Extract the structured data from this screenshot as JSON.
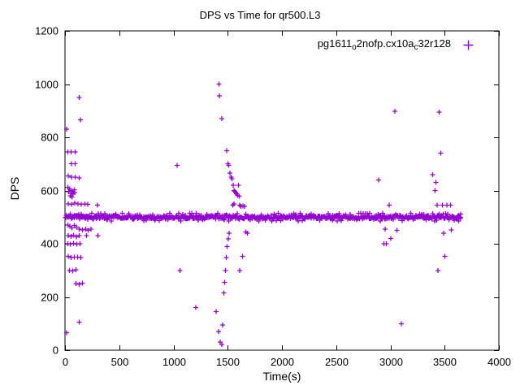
{
  "legend": {
    "p1": "pg1611",
    "s1": "o",
    "p2": "2nofp.cx10a",
    "s2": "c",
    "p3": "32r128"
  },
  "chart_data": {
    "type": "scatter",
    "title": "DPS vs Time for qr500.L3",
    "xlabel": "Time(s)",
    "ylabel": "DPS",
    "xlim": [
      0,
      4000
    ],
    "ylim": [
      0,
      1200
    ],
    "xticks": [
      0,
      500,
      1000,
      1500,
      2000,
      2500,
      3000,
      3500,
      4000
    ],
    "yticks": [
      0,
      200,
      400,
      600,
      800,
      1000,
      1200
    ],
    "grid": false,
    "legend_label": "pg1611_o2nofp.cx10a_c32r128",
    "legend_position": "top-right",
    "marker": "plus",
    "color": "#9400d3",
    "band": {
      "y": 500,
      "x_start": 5,
      "x_end": 3650,
      "x_step": 8,
      "y_jitter": 7,
      "fuzz_step": 20,
      "fuzz_jitter": 15
    },
    "points": [
      [
        15,
        830
      ],
      [
        15,
        65
      ],
      [
        25,
        745
      ],
      [
        55,
        745
      ],
      [
        95,
        745
      ],
      [
        130,
        950
      ],
      [
        142,
        865
      ],
      [
        60,
        700
      ],
      [
        95,
        700
      ],
      [
        30,
        655
      ],
      [
        60,
        650
      ],
      [
        95,
        650
      ],
      [
        130,
        648
      ],
      [
        25,
        612
      ],
      [
        40,
        606
      ],
      [
        55,
        600
      ],
      [
        70,
        597
      ],
      [
        85,
        603
      ],
      [
        35,
        595
      ],
      [
        60,
        590
      ],
      [
        75,
        588
      ],
      [
        90,
        592
      ],
      [
        50,
        580
      ],
      [
        65,
        575
      ],
      [
        30,
        550
      ],
      [
        60,
        548
      ],
      [
        90,
        552
      ],
      [
        120,
        550
      ],
      [
        150,
        548
      ],
      [
        185,
        550
      ],
      [
        210,
        548
      ],
      [
        300,
        545
      ],
      [
        25,
        470
      ],
      [
        45,
        465
      ],
      [
        65,
        460
      ],
      [
        85,
        468
      ],
      [
        105,
        462
      ],
      [
        130,
        455
      ],
      [
        160,
        452
      ],
      [
        190,
        455
      ],
      [
        215,
        450
      ],
      [
        240,
        455
      ],
      [
        30,
        430
      ],
      [
        55,
        428
      ],
      [
        80,
        432
      ],
      [
        105,
        426
      ],
      [
        130,
        430
      ],
      [
        200,
        430
      ],
      [
        305,
        430
      ],
      [
        25,
        400
      ],
      [
        50,
        398
      ],
      [
        80,
        402
      ],
      [
        110,
        398
      ],
      [
        140,
        400
      ],
      [
        30,
        352
      ],
      [
        55,
        348
      ],
      [
        85,
        350
      ],
      [
        115,
        350
      ],
      [
        145,
        348
      ],
      [
        40,
        300
      ],
      [
        70,
        298
      ],
      [
        100,
        302
      ],
      [
        100,
        250
      ],
      [
        130,
        248
      ],
      [
        160,
        252
      ],
      [
        130,
        105
      ],
      [
        1035,
        695
      ],
      [
        1060,
        300
      ],
      [
        1205,
        160
      ],
      [
        1420,
        1000
      ],
      [
        1425,
        955
      ],
      [
        1445,
        870
      ],
      [
        1395,
        145
      ],
      [
        1415,
        70
      ],
      [
        1430,
        30
      ],
      [
        1445,
        22
      ],
      [
        1455,
        95
      ],
      [
        1465,
        215
      ],
      [
        1472,
        255
      ],
      [
        1480,
        300
      ],
      [
        1488,
        348
      ],
      [
        1496,
        390
      ],
      [
        1504,
        418
      ],
      [
        1512,
        440
      ],
      [
        1490,
        750
      ],
      [
        1500,
        700
      ],
      [
        1510,
        695
      ],
      [
        1520,
        665
      ],
      [
        1530,
        650
      ],
      [
        1540,
        645
      ],
      [
        1550,
        620
      ],
      [
        1600,
        620
      ],
      [
        1558,
        600
      ],
      [
        1565,
        597
      ],
      [
        1572,
        592
      ],
      [
        1580,
        588
      ],
      [
        1590,
        582
      ],
      [
        1605,
        578
      ],
      [
        1545,
        545
      ],
      [
        1558,
        550
      ],
      [
        1612,
        545
      ],
      [
        1622,
        540
      ],
      [
        1640,
        542
      ],
      [
        1655,
        540
      ],
      [
        1665,
        445
      ],
      [
        1680,
        440
      ],
      [
        1635,
        352
      ],
      [
        1610,
        300
      ],
      [
        2890,
        640
      ],
      [
        2940,
        400
      ],
      [
        2950,
        455
      ],
      [
        2962,
        400
      ],
      [
        2990,
        545
      ],
      [
        3005,
        420
      ],
      [
        3040,
        898
      ],
      [
        3060,
        450
      ],
      [
        3100,
        100
      ],
      [
        3390,
        660
      ],
      [
        3412,
        600
      ],
      [
        3418,
        630
      ],
      [
        3432,
        545
      ],
      [
        3450,
        895
      ],
      [
        3465,
        740
      ],
      [
        3478,
        545
      ],
      [
        3490,
        440
      ],
      [
        3500,
        352
      ],
      [
        3440,
        300
      ],
      [
        3520,
        545
      ],
      [
        3540,
        490
      ],
      [
        3555,
        545
      ],
      [
        3560,
        452
      ],
      [
        3580,
        495
      ],
      [
        3605,
        498
      ],
      [
        3625,
        495
      ],
      [
        3648,
        500
      ]
    ]
  }
}
